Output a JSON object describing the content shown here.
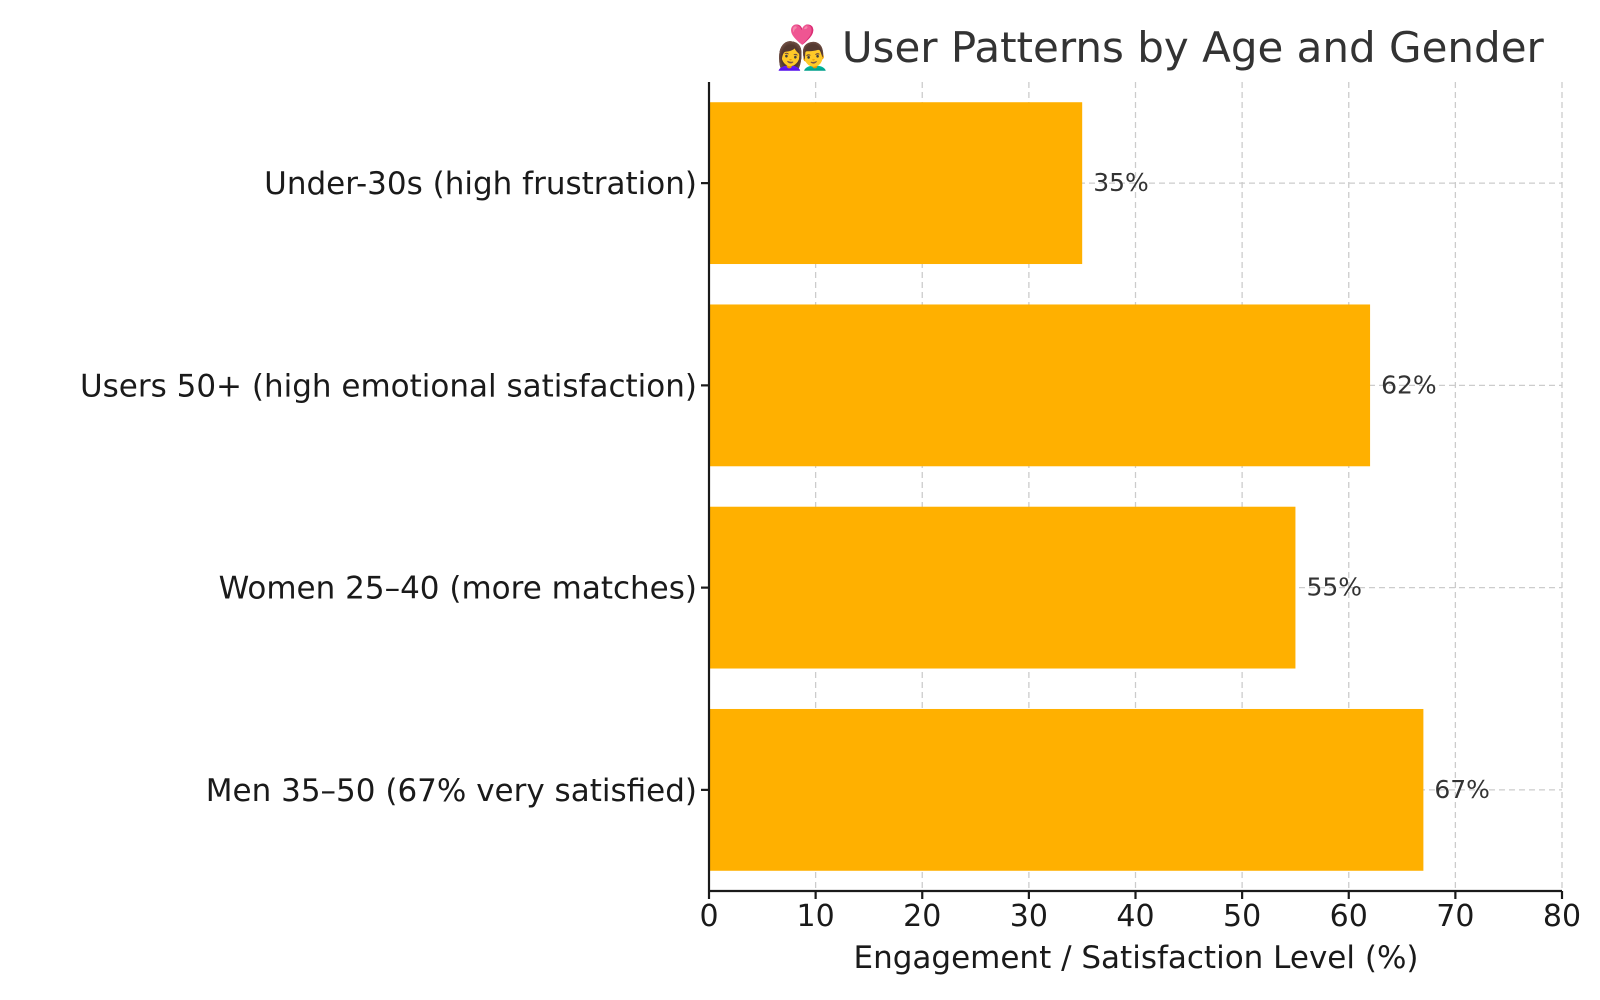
{
  "chart_data": {
    "type": "bar",
    "orientation": "horizontal",
    "title": "👩‍❤️‍👨 User Patterns by Age and Gender",
    "xlabel": "Engagement / Satisfaction Level (%)",
    "ylabel": "",
    "categories": [
      "Under-30s (high frustration)",
      "Users 50+ (high emotional satisfaction)",
      "Women 25–40 (more matches)",
      "Men 35–50 (67% very satisfied)"
    ],
    "values": [
      35,
      62,
      55,
      67
    ],
    "data_labels": [
      "35%",
      "62%",
      "55%",
      "67%"
    ],
    "xlim": [
      0,
      80
    ],
    "xticks": [
      0,
      10,
      20,
      30,
      40,
      50,
      60,
      70,
      80
    ],
    "grid": true,
    "legend": "none",
    "bar_color": "#FFB000"
  }
}
